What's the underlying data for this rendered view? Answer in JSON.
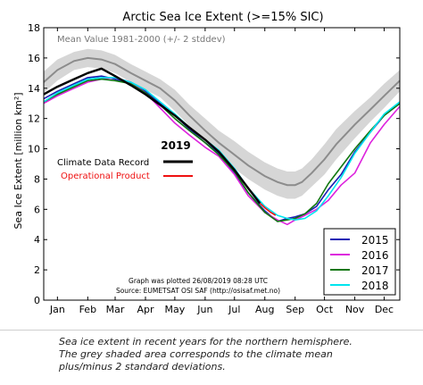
{
  "chart_data": {
    "type": "line",
    "title": "Arctic Sea Ice Extent (>=15% SIC)",
    "ylabel": "Sea Ice Extent [million km²]",
    "xlabel": "",
    "ylim": [
      0,
      18
    ],
    "yticks": [
      0,
      2,
      4,
      6,
      8,
      10,
      12,
      14,
      16,
      18
    ],
    "x_unit": "day of year",
    "xlim": [
      1,
      365
    ],
    "month_ticks": [
      "Jan",
      "Feb",
      "Mar",
      "Apr",
      "May",
      "Jun",
      "Jul",
      "Aug",
      "Sep",
      "Oct",
      "Nov",
      "Dec"
    ],
    "month_tick_days": [
      15,
      46,
      74,
      105,
      135,
      166,
      196,
      227,
      258,
      288,
      319,
      349
    ],
    "grid": false,
    "mean_label": "Mean Value 1981-2000 (+/- 2 stddev)",
    "mean": {
      "x": [
        1,
        15,
        32,
        46,
        60,
        74,
        90,
        105,
        120,
        135,
        150,
        166,
        180,
        196,
        210,
        227,
        240,
        250,
        258,
        265,
        275,
        288,
        300,
        319,
        335,
        349,
        365
      ],
      "values": [
        14.4,
        15.2,
        15.8,
        16.0,
        15.9,
        15.6,
        15.0,
        14.5,
        14.0,
        13.2,
        12.2,
        11.2,
        10.4,
        9.6,
        8.9,
        8.2,
        7.8,
        7.6,
        7.6,
        7.8,
        8.4,
        9.3,
        10.3,
        11.6,
        12.6,
        13.5,
        14.5
      ],
      "stddev2": [
        0.7,
        0.7,
        0.6,
        0.6,
        0.6,
        0.6,
        0.6,
        0.6,
        0.6,
        0.7,
        0.7,
        0.8,
        0.8,
        0.9,
        0.9,
        0.9,
        0.9,
        0.9,
        0.9,
        0.9,
        0.9,
        1.0,
        1.0,
        0.9,
        0.8,
        0.8,
        0.7
      ]
    },
    "series": [
      {
        "name": "2015",
        "color": "#1c1cb4",
        "x": [
          1,
          15,
          32,
          46,
          60,
          74,
          90,
          105,
          120,
          135,
          150,
          166,
          180,
          196,
          210,
          227,
          240,
          250,
          258,
          268,
          280,
          292,
          305,
          319,
          335,
          349,
          365
        ],
        "values": [
          13.3,
          13.8,
          14.3,
          14.7,
          14.8,
          14.6,
          14.3,
          13.8,
          13.0,
          12.2,
          11.3,
          10.4,
          9.7,
          8.4,
          7.1,
          5.9,
          5.2,
          5.4,
          5.5,
          5.7,
          6.2,
          7.3,
          8.3,
          9.8,
          11.1,
          12.2,
          13.0
        ]
      },
      {
        "name": "2016",
        "color": "#dd22dd",
        "x": [
          1,
          15,
          32,
          46,
          60,
          74,
          90,
          105,
          120,
          135,
          150,
          166,
          180,
          196,
          210,
          227,
          240,
          250,
          258,
          268,
          280,
          292,
          305,
          319,
          335,
          349,
          365
        ],
        "values": [
          13.0,
          13.5,
          14.0,
          14.4,
          14.6,
          14.7,
          14.4,
          13.7,
          12.7,
          11.7,
          10.9,
          10.1,
          9.5,
          8.3,
          6.9,
          5.8,
          5.3,
          5.0,
          5.3,
          5.6,
          6.0,
          6.6,
          7.6,
          8.4,
          10.4,
          11.6,
          12.8
        ]
      },
      {
        "name": "2017",
        "color": "#117711",
        "x": [
          1,
          15,
          32,
          46,
          60,
          74,
          90,
          105,
          120,
          135,
          150,
          166,
          180,
          196,
          210,
          227,
          240,
          250,
          258,
          268,
          280,
          292,
          305,
          319,
          335,
          349,
          365
        ],
        "values": [
          13.1,
          13.6,
          14.1,
          14.5,
          14.6,
          14.5,
          14.3,
          13.7,
          12.9,
          12.0,
          11.2,
          10.4,
          9.6,
          8.5,
          7.1,
          5.8,
          5.2,
          5.3,
          5.4,
          5.7,
          6.4,
          7.7,
          8.8,
          10.0,
          11.2,
          12.2,
          13.0
        ]
      },
      {
        "name": "2018",
        "color": "#00e5ee",
        "x": [
          1,
          15,
          32,
          46,
          60,
          74,
          90,
          105,
          120,
          135,
          150,
          166,
          180,
          196,
          210,
          227,
          240,
          250,
          258,
          268,
          280,
          292,
          305,
          319,
          335,
          349,
          365
        ],
        "values": [
          13.1,
          13.7,
          14.2,
          14.6,
          14.7,
          14.7,
          14.4,
          13.9,
          13.1,
          12.3,
          11.4,
          10.6,
          9.9,
          8.7,
          7.4,
          6.2,
          5.6,
          5.4,
          5.3,
          5.4,
          5.9,
          6.9,
          8.1,
          9.7,
          11.1,
          12.3,
          13.1
        ]
      },
      {
        "name": "Climate Data Record",
        "color": "#000000",
        "x": [
          1,
          15,
          32,
          46,
          60,
          74,
          90,
          105,
          120,
          135,
          150,
          166,
          180,
          196,
          210,
          222
        ],
        "values": [
          13.6,
          14.1,
          14.6,
          15.0,
          15.3,
          14.8,
          14.2,
          13.6,
          12.9,
          12.2,
          11.4,
          10.6,
          9.8,
          8.6,
          7.4,
          6.4
        ]
      },
      {
        "name": "Operational Product",
        "color": "#ee1111",
        "x": [
          222,
          227,
          233,
          238
        ],
        "values": [
          6.4,
          6.1,
          5.8,
          5.6
        ]
      }
    ],
    "legend_year": "2019",
    "legend_left_placement": "center-left",
    "legend_right_placement": "bottom-right",
    "annotations": [
      "Graph was plotted 26/08/2019 08:28 UTC",
      "Source: EUMETSAT OSI SAF (http://osisaf.met.no)"
    ]
  },
  "caption": {
    "line1": "Sea ice extent in recent years for the northern hemisphere.",
    "line2": "The grey shaded area corresponds to the climate mean",
    "line3": "plus/minus 2 standard deviations."
  }
}
